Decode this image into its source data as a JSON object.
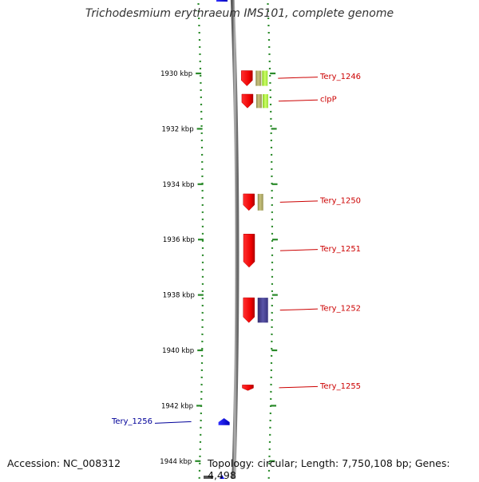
{
  "title": "Trichodesmium erythraeum IMS101, complete genome",
  "footer": {
    "accession": "Accession: NC_008312",
    "topology": "Topology: circular; Length: 7,750,108 bp; Genes: 4,498"
  },
  "scale": {
    "unit": "kbp",
    "ticks": [
      {
        "label": "1930 kbp",
        "kbp": 1930
      },
      {
        "label": "1932 kbp",
        "kbp": 1932
      },
      {
        "label": "1934 kbp",
        "kbp": 1934
      },
      {
        "label": "1936 kbp",
        "kbp": 1936
      },
      {
        "label": "1938 kbp",
        "kbp": 1938
      },
      {
        "label": "1940 kbp",
        "kbp": 1940
      },
      {
        "label": "1942 kbp",
        "kbp": 1942
      },
      {
        "label": "1944 kbp",
        "kbp": 1944
      }
    ]
  },
  "colors": {
    "forward_label": "#cc0000",
    "reverse_label": "#000099",
    "gene_forward": "#ff0000",
    "gene_reverse": "#0000ff",
    "feature_olive": "#b5b06a",
    "feature_lime": "#aaee44",
    "feature_navy": "#4a4590",
    "scale_tick": "#2a8a2a",
    "backbone": "#888888"
  },
  "genes": [
    {
      "label": "Tery_1246",
      "strand": "forward",
      "start_kbp": 1929.9,
      "end_kbp": 1930.45,
      "features": [
        "olive",
        "lime"
      ]
    },
    {
      "label": "clpP",
      "strand": "forward",
      "start_kbp": 1930.75,
      "end_kbp": 1931.25,
      "features": [
        "olive",
        "lime"
      ]
    },
    {
      "label": "Tery_1250",
      "strand": "forward",
      "start_kbp": 1934.35,
      "end_kbp": 1934.95,
      "features": [
        "olive"
      ]
    },
    {
      "label": "Tery_1251",
      "strand": "forward",
      "start_kbp": 1935.8,
      "end_kbp": 1937.0,
      "features": []
    },
    {
      "label": "Tery_1252",
      "strand": "forward",
      "start_kbp": 1938.1,
      "end_kbp": 1939.0,
      "features": [
        "navy"
      ]
    },
    {
      "label": "Tery_1255",
      "strand": "forward",
      "start_kbp": 1941.25,
      "end_kbp": 1941.45,
      "features": []
    },
    {
      "label": "Tery_1256",
      "strand": "reverse",
      "start_kbp": 1942.45,
      "end_kbp": 1942.7,
      "features": []
    }
  ]
}
